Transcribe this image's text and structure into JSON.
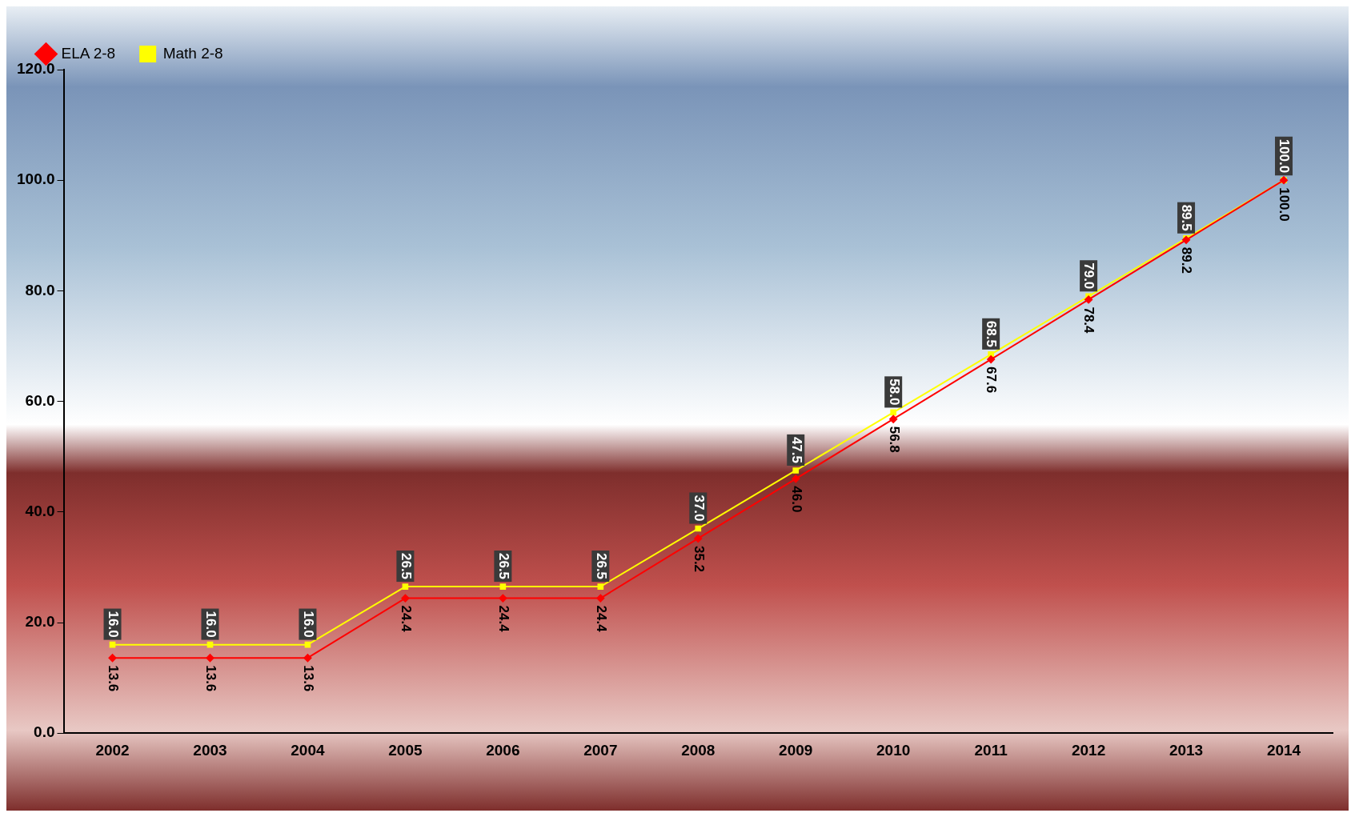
{
  "chart_data": {
    "type": "line",
    "categories": [
      "2002",
      "2003",
      "2004",
      "2005",
      "2006",
      "2007",
      "2008",
      "2009",
      "2010",
      "2011",
      "2012",
      "2013",
      "2014"
    ],
    "series": [
      {
        "name": "ELA 2-8",
        "color": "#ff0000",
        "marker": "diamond",
        "values": [
          13.6,
          13.6,
          13.6,
          24.4,
          24.4,
          24.4,
          35.2,
          46.0,
          56.8,
          67.6,
          78.4,
          89.2,
          100.0
        ],
        "value_labels": [
          "13.6",
          "13.6",
          "13.6",
          "24.4",
          "24.4",
          "24.4",
          "35.2",
          "46.0",
          "56.8",
          "67.6",
          "78.4",
          "89.2",
          "100.0"
        ]
      },
      {
        "name": "Math 2-8",
        "color": "#ffff00",
        "marker": "square",
        "values": [
          16.0,
          16.0,
          16.0,
          26.5,
          26.5,
          26.5,
          37.0,
          47.5,
          58.0,
          68.5,
          79.0,
          89.5,
          100.0
        ],
        "value_labels": [
          "16.0",
          "16.0",
          "16.0",
          "26.5",
          "26.5",
          "26.5",
          "37.0",
          "47.5",
          "58.0",
          "68.5",
          "79.0",
          "89.5",
          "100.0"
        ]
      }
    ],
    "ylim": [
      0,
      120
    ],
    "yticks": [
      {
        "value": 0,
        "label": "0.0"
      },
      {
        "value": 20,
        "label": "20.0"
      },
      {
        "value": 40,
        "label": "40.0"
      },
      {
        "value": 60,
        "label": "60.0"
      },
      {
        "value": 80,
        "label": "80.0"
      },
      {
        "value": 100,
        "label": "100.0"
      },
      {
        "value": 120,
        "label": "120.0"
      }
    ],
    "grid": false,
    "legend": "top left",
    "line_style": "solid"
  }
}
